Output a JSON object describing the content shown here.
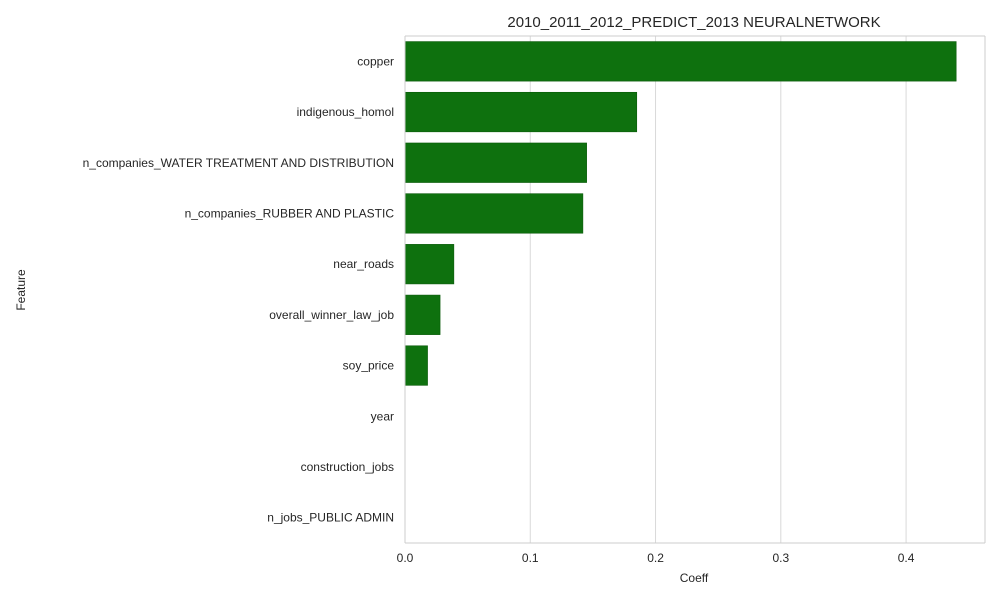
{
  "chart_data": {
    "type": "bar",
    "orientation": "horizontal",
    "title": "2010_2011_2012_PREDICT_2013 NEURALNETWORK",
    "xlabel": "Coeff",
    "ylabel": "Feature",
    "categories": [
      "copper",
      "indigenous_homol",
      "n_companies_WATER TREATMENT AND DISTRIBUTION",
      "n_companies_RUBBER AND PLASTIC",
      "near_roads",
      "overall_winner_law_job",
      "soy_price",
      "year",
      "construction_jobs",
      "n_jobs_PUBLIC ADMIN"
    ],
    "values": [
      0.44,
      0.185,
      0.145,
      0.142,
      0.039,
      0.028,
      0.018,
      0.0,
      0.0,
      0.0
    ],
    "xlim": [
      0,
      0.463
    ],
    "xticks": [
      0.0,
      0.1,
      0.2,
      0.3,
      0.4
    ],
    "xtick_labels": [
      "0.0",
      "0.1",
      "0.2",
      "0.3",
      "0.4"
    ],
    "grid": true,
    "legend": "none",
    "colors": {
      "bar": "#0e710e",
      "bar_edge": "#0a5a0a",
      "grid": "#d9d9d9",
      "spine": "#cccccc",
      "text": "#262626"
    }
  }
}
